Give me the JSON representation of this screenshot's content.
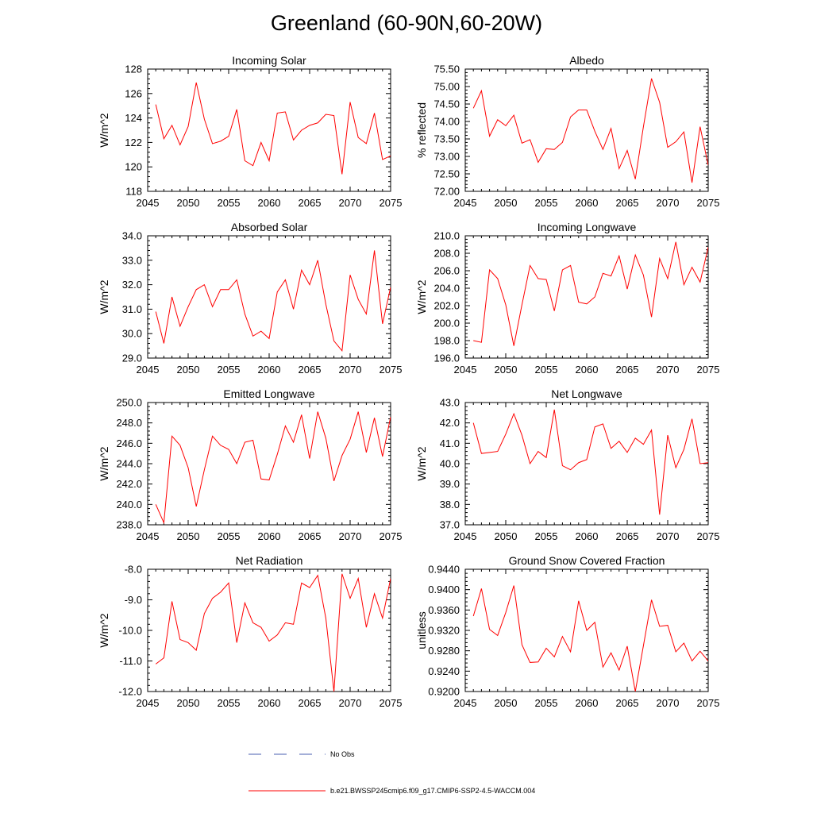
{
  "title": "Greenland (60-90N,60-20W)",
  "colors": {
    "model": "#ff0000",
    "obs": "#4a5fb0",
    "axis": "#000000"
  },
  "legend": {
    "obs_label": "No Obs",
    "model_label": "b.e21.BWSSP245cmip6.f09_g17.CMIP6-SSP2-4.5-WACCM.004"
  },
  "chart_data": [
    {
      "type": "line",
      "title": "Incoming Solar",
      "ylabel": "W/m^2",
      "xlim": [
        2045,
        2075
      ],
      "ylim": [
        118,
        128
      ],
      "xticks": [
        2045,
        2050,
        2055,
        2060,
        2065,
        2070,
        2075
      ],
      "yticks": [
        118,
        120,
        122,
        124,
        126,
        128
      ],
      "ytick_labels": [
        "118",
        "120",
        "122",
        "124",
        "126",
        "128"
      ],
      "x": [
        2046,
        2047,
        2048,
        2049,
        2050,
        2051,
        2052,
        2053,
        2054,
        2055,
        2056,
        2057,
        2058,
        2059,
        2060,
        2061,
        2062,
        2063,
        2064,
        2065,
        2066,
        2067,
        2068,
        2069,
        2070,
        2071,
        2072,
        2073,
        2074,
        2075
      ],
      "values": [
        125.1,
        122.3,
        123.4,
        121.8,
        123.3,
        126.9,
        123.9,
        121.9,
        122.1,
        122.5,
        124.7,
        120.5,
        120.1,
        122.0,
        120.5,
        124.4,
        124.5,
        122.2,
        123.0,
        123.4,
        123.6,
        124.3,
        124.2,
        119.4,
        125.3,
        122.4,
        121.9,
        124.4,
        120.6,
        120.9
      ]
    },
    {
      "type": "line",
      "title": "Albedo",
      "ylabel": "% reflected",
      "xlim": [
        2045,
        2075
      ],
      "ylim": [
        72.0,
        75.5
      ],
      "xticks": [
        2045,
        2050,
        2055,
        2060,
        2065,
        2070,
        2075
      ],
      "yticks": [
        72.0,
        72.5,
        73.0,
        73.5,
        74.0,
        74.5,
        75.0,
        75.5
      ],
      "ytick_labels": [
        "72.00",
        "72.50",
        "73.00",
        "73.50",
        "74.00",
        "74.50",
        "75.00",
        "75.50"
      ],
      "x": [
        2046,
        2047,
        2048,
        2049,
        2050,
        2051,
        2052,
        2053,
        2054,
        2055,
        2056,
        2057,
        2058,
        2059,
        2060,
        2061,
        2062,
        2063,
        2064,
        2065,
        2066,
        2067,
        2068,
        2069,
        2070,
        2071,
        2072,
        2073,
        2074,
        2075
      ],
      "values": [
        74.38,
        74.88,
        73.58,
        74.05,
        73.88,
        74.18,
        73.38,
        73.48,
        72.83,
        73.22,
        73.2,
        73.4,
        74.13,
        74.33,
        74.33,
        73.72,
        73.2,
        73.8,
        72.65,
        73.17,
        72.35,
        73.85,
        75.23,
        74.55,
        73.26,
        73.42,
        73.7,
        72.25,
        73.85,
        72.75
      ]
    },
    {
      "type": "line",
      "title": "Absorbed Solar",
      "ylabel": "W/m^2",
      "xlim": [
        2045,
        2075
      ],
      "ylim": [
        29.0,
        34.0
      ],
      "xticks": [
        2045,
        2050,
        2055,
        2060,
        2065,
        2070,
        2075
      ],
      "yticks": [
        29.0,
        30.0,
        31.0,
        32.0,
        33.0,
        34.0
      ],
      "ytick_labels": [
        "29.0",
        "30.0",
        "31.0",
        "32.0",
        "33.0",
        "34.0"
      ],
      "x": [
        2046,
        2047,
        2048,
        2049,
        2050,
        2051,
        2052,
        2053,
        2054,
        2055,
        2056,
        2057,
        2058,
        2059,
        2060,
        2061,
        2062,
        2063,
        2064,
        2065,
        2066,
        2067,
        2068,
        2069,
        2070,
        2071,
        2072,
        2073,
        2074,
        2075
      ],
      "values": [
        30.9,
        29.6,
        31.5,
        30.3,
        31.1,
        31.8,
        32.0,
        31.1,
        31.8,
        31.8,
        32.2,
        30.8,
        29.9,
        30.1,
        29.8,
        31.7,
        32.2,
        31.0,
        32.6,
        32.0,
        33.0,
        31.2,
        29.7,
        29.3,
        32.4,
        31.4,
        30.8,
        33.4,
        30.4,
        31.9
      ]
    },
    {
      "type": "line",
      "title": "Incoming Longwave",
      "ylabel": "W/m^2",
      "xlim": [
        2045,
        2075
      ],
      "ylim": [
        196.0,
        210.0
      ],
      "xticks": [
        2045,
        2050,
        2055,
        2060,
        2065,
        2070,
        2075
      ],
      "yticks": [
        196,
        198,
        200,
        202,
        204,
        206,
        208,
        210
      ],
      "ytick_labels": [
        "196.0",
        "198.0",
        "200.0",
        "202.0",
        "204.0",
        "206.0",
        "208.0",
        "210.0"
      ],
      "x": [
        2046,
        2047,
        2048,
        2049,
        2050,
        2051,
        2052,
        2053,
        2054,
        2055,
        2056,
        2057,
        2058,
        2059,
        2060,
        2061,
        2062,
        2063,
        2064,
        2065,
        2066,
        2067,
        2068,
        2069,
        2070,
        2071,
        2072,
        2073,
        2074,
        2075
      ],
      "values": [
        198.0,
        197.8,
        206.1,
        205.1,
        202.1,
        197.4,
        202.1,
        206.6,
        205.1,
        205.0,
        201.4,
        206.1,
        206.6,
        202.4,
        202.2,
        203.0,
        205.7,
        205.4,
        207.7,
        203.9,
        207.8,
        205.5,
        200.7,
        207.4,
        205.1,
        209.3,
        204.4,
        206.4,
        204.7,
        208.7
      ]
    },
    {
      "type": "line",
      "title": "Emitted Longwave",
      "ylabel": "W/m^2",
      "xlim": [
        2045,
        2075
      ],
      "ylim": [
        238.0,
        250.0
      ],
      "xticks": [
        2045,
        2050,
        2055,
        2060,
        2065,
        2070,
        2075
      ],
      "yticks": [
        238,
        240,
        242,
        244,
        246,
        248,
        250
      ],
      "ytick_labels": [
        "238.0",
        "240.0",
        "242.0",
        "244.0",
        "246.0",
        "248.0",
        "250.0"
      ],
      "x": [
        2046,
        2047,
        2048,
        2049,
        2050,
        2051,
        2052,
        2053,
        2054,
        2055,
        2056,
        2057,
        2058,
        2059,
        2060,
        2061,
        2062,
        2063,
        2064,
        2065,
        2066,
        2067,
        2068,
        2069,
        2070,
        2071,
        2072,
        2073,
        2074,
        2075
      ],
      "values": [
        240.0,
        238.2,
        246.7,
        245.8,
        243.6,
        239.8,
        243.4,
        246.7,
        245.8,
        245.4,
        244.0,
        246.1,
        246.3,
        242.5,
        242.4,
        244.9,
        247.7,
        246.1,
        248.8,
        244.5,
        249.1,
        246.5,
        242.3,
        244.8,
        246.4,
        249.1,
        245.1,
        248.5,
        244.7,
        248.6
      ]
    },
    {
      "type": "line",
      "title": "Net Longwave",
      "ylabel": "W/m^2",
      "xlim": [
        2045,
        2075
      ],
      "ylim": [
        37.0,
        43.0
      ],
      "xticks": [
        2045,
        2050,
        2055,
        2060,
        2065,
        2070,
        2075
      ],
      "yticks": [
        37,
        38,
        39,
        40,
        41,
        42,
        43
      ],
      "ytick_labels": [
        "37.0",
        "38.0",
        "39.0",
        "40.0",
        "41.0",
        "42.0",
        "43.0"
      ],
      "x": [
        2046,
        2047,
        2048,
        2049,
        2050,
        2051,
        2052,
        2053,
        2054,
        2055,
        2056,
        2057,
        2058,
        2059,
        2060,
        2061,
        2062,
        2063,
        2064,
        2065,
        2066,
        2067,
        2068,
        2069,
        2070,
        2071,
        2072,
        2073,
        2074,
        2075
      ],
      "values": [
        42.0,
        40.5,
        40.55,
        40.6,
        41.45,
        42.45,
        41.4,
        40.0,
        40.6,
        40.3,
        42.65,
        39.9,
        39.7,
        40.05,
        40.2,
        41.8,
        41.95,
        40.75,
        41.1,
        40.55,
        41.25,
        40.95,
        41.65,
        37.5,
        41.4,
        39.8,
        40.7,
        42.2,
        40.0,
        40.05
      ]
    },
    {
      "type": "line",
      "title": "Net Radiation",
      "ylabel": "W/m^2",
      "xlim": [
        2045,
        2075
      ],
      "ylim": [
        -12.0,
        -8.0
      ],
      "xticks": [
        2045,
        2050,
        2055,
        2060,
        2065,
        2070,
        2075
      ],
      "yticks": [
        -12,
        -11,
        -10,
        -9,
        -8
      ],
      "ytick_labels": [
        "-12.0",
        "-11.0",
        "-10.0",
        "-9.0",
        "-8.0"
      ],
      "x": [
        2046,
        2047,
        2048,
        2049,
        2050,
        2051,
        2052,
        2053,
        2054,
        2055,
        2056,
        2057,
        2058,
        2059,
        2060,
        2061,
        2062,
        2063,
        2064,
        2065,
        2066,
        2067,
        2068,
        2069,
        2070,
        2071,
        2072,
        2073,
        2074,
        2075
      ],
      "values": [
        -11.1,
        -10.9,
        -9.05,
        -10.3,
        -10.4,
        -10.65,
        -9.45,
        -8.95,
        -8.75,
        -8.45,
        -10.4,
        -9.1,
        -9.75,
        -9.9,
        -10.35,
        -10.15,
        -9.75,
        -9.8,
        -8.45,
        -8.6,
        -8.2,
        -9.6,
        -12.0,
        -8.15,
        -8.95,
        -8.3,
        -9.9,
        -8.8,
        -9.6,
        -8.3
      ]
    },
    {
      "type": "line",
      "title": "Ground Snow Covered Fraction",
      "ylabel": "unitless",
      "xlim": [
        2045,
        2075
      ],
      "ylim": [
        0.92,
        0.944
      ],
      "xticks": [
        2045,
        2050,
        2055,
        2060,
        2065,
        2070,
        2075
      ],
      "yticks": [
        0.92,
        0.924,
        0.928,
        0.932,
        0.936,
        0.94,
        0.944
      ],
      "ytick_labels": [
        "0.9200",
        "0.9240",
        "0.9280",
        "0.9320",
        "0.9360",
        "0.9400",
        "0.9440"
      ],
      "x": [
        2046,
        2047,
        2048,
        2049,
        2050,
        2051,
        2052,
        2053,
        2054,
        2055,
        2056,
        2057,
        2058,
        2059,
        2060,
        2061,
        2062,
        2063,
        2064,
        2065,
        2066,
        2067,
        2068,
        2069,
        2070,
        2071,
        2072,
        2073,
        2074,
        2075
      ],
      "values": [
        0.9348,
        0.9402,
        0.9322,
        0.931,
        0.9355,
        0.9408,
        0.9292,
        0.9257,
        0.9258,
        0.9285,
        0.9268,
        0.9308,
        0.9278,
        0.9378,
        0.932,
        0.9336,
        0.9248,
        0.9276,
        0.9242,
        0.9289,
        0.92,
        0.929,
        0.938,
        0.9328,
        0.933,
        0.9278,
        0.9295,
        0.926,
        0.9279,
        0.926
      ]
    }
  ]
}
